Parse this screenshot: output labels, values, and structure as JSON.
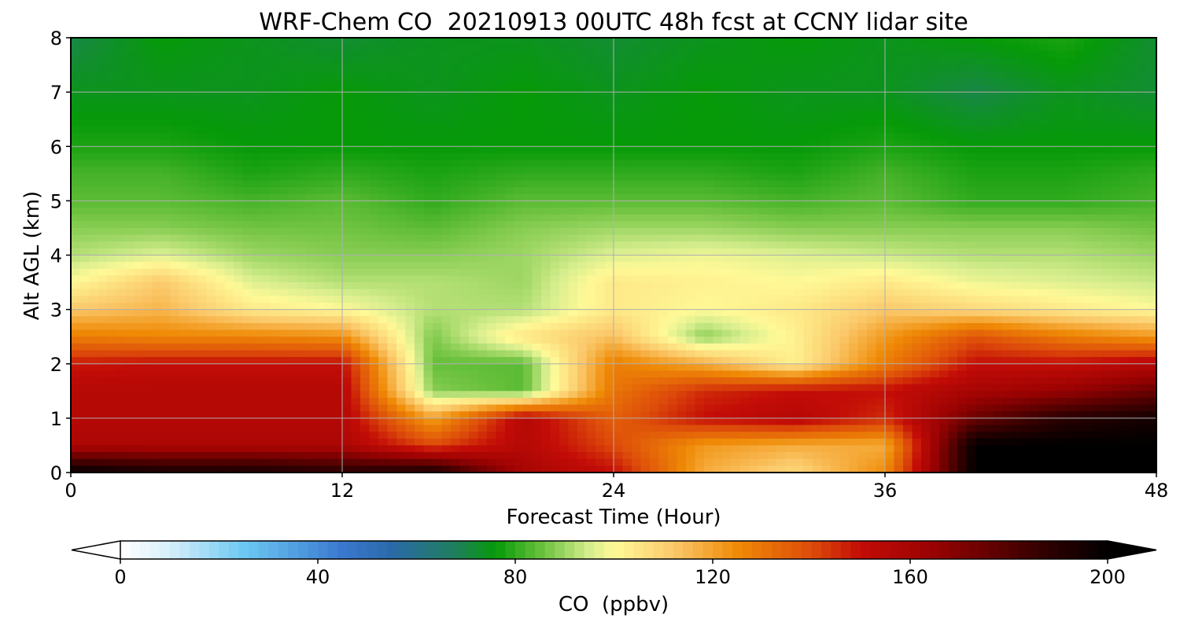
{
  "chart_data": {
    "type": "heatmap",
    "title": "WRF-Chem CO  20210913 00UTC 48h fcst at CCNY lidar site",
    "xlabel": "Forecast Time (Hour)",
    "ylabel": "Alt AGL (km)",
    "xlim": [
      0,
      48
    ],
    "ylim": [
      0,
      8
    ],
    "x_ticks": [
      "0",
      "12",
      "24",
      "36",
      "48"
    ],
    "y_ticks": [
      "0",
      "1",
      "2",
      "3",
      "4",
      "5",
      "6",
      "7",
      "8"
    ],
    "grid": true,
    "x": [
      0,
      4,
      8,
      12,
      16,
      20,
      24,
      28,
      32,
      36,
      40,
      44,
      48
    ],
    "y": [
      0,
      0.5,
      1,
      1.5,
      2,
      2.5,
      3,
      3.5,
      4,
      4.5,
      5,
      5.5,
      6,
      7,
      8
    ],
    "z": [
      [
        200,
        195,
        195,
        190,
        195,
        160,
        150,
        118,
        108,
        125,
        200,
        200,
        200
      ],
      [
        158,
        158,
        158,
        158,
        140,
        155,
        140,
        122,
        118,
        118,
        200,
        200,
        200
      ],
      [
        155,
        155,
        155,
        155,
        120,
        155,
        135,
        150,
        155,
        145,
        175,
        190,
        195
      ],
      [
        155,
        155,
        155,
        155,
        88,
        84,
        130,
        145,
        150,
        150,
        160,
        165,
        175
      ],
      [
        148,
        150,
        150,
        150,
        85,
        84,
        128,
        118,
        102,
        128,
        150,
        150,
        155
      ],
      [
        128,
        126,
        126,
        124,
        87,
        105,
        114,
        88,
        102,
        122,
        138,
        128,
        122
      ],
      [
        112,
        116,
        104,
        100,
        92,
        92,
        104,
        100,
        104,
        112,
        108,
        104,
        100
      ],
      [
        100,
        112,
        96,
        92,
        92,
        90,
        104,
        102,
        100,
        104,
        98,
        96,
        94
      ],
      [
        92,
        96,
        90,
        88,
        88,
        90,
        96,
        98,
        96,
        94,
        92,
        92,
        90
      ],
      [
        88,
        88,
        86,
        86,
        84,
        88,
        90,
        90,
        88,
        88,
        88,
        88,
        86
      ],
      [
        84,
        84,
        82,
        84,
        80,
        84,
        84,
        84,
        82,
        84,
        80,
        80,
        82
      ],
      [
        82,
        82,
        78,
        80,
        78,
        80,
        80,
        80,
        78,
        82,
        78,
        78,
        80
      ],
      [
        78,
        78,
        76,
        76,
        76,
        76,
        76,
        76,
        76,
        78,
        76,
        76,
        76
      ],
      [
        74,
        74,
        74,
        76,
        74,
        76,
        74,
        76,
        74,
        74,
        70,
        74,
        72
      ],
      [
        70,
        76,
        74,
        72,
        74,
        74,
        72,
        74,
        76,
        74,
        76,
        78,
        72
      ]
    ],
    "colorbar": {
      "label": "CO  (ppbv)",
      "min": 0,
      "max": 200,
      "ticks": [
        "0",
        "40",
        "80",
        "120",
        "160",
        "200"
      ],
      "extend": "both",
      "stops": [
        {
          "value": 0,
          "color": "#ffffff"
        },
        {
          "value": 10,
          "color": "#d6effb"
        },
        {
          "value": 25,
          "color": "#6cc8f2"
        },
        {
          "value": 45,
          "color": "#3a78cf"
        },
        {
          "value": 55,
          "color": "#2b6aa8"
        },
        {
          "value": 68,
          "color": "#1f7f5c"
        },
        {
          "value": 76,
          "color": "#069a08"
        },
        {
          "value": 85,
          "color": "#66bf3a"
        },
        {
          "value": 95,
          "color": "#d5ed8d"
        },
        {
          "value": 100,
          "color": "#fff997"
        },
        {
          "value": 112,
          "color": "#fbc96b"
        },
        {
          "value": 125,
          "color": "#ef8a06"
        },
        {
          "value": 140,
          "color": "#dd4b0a"
        },
        {
          "value": 150,
          "color": "#c30c07"
        },
        {
          "value": 165,
          "color": "#980202"
        },
        {
          "value": 185,
          "color": "#3b0000"
        },
        {
          "value": 200,
          "color": "#000000"
        }
      ]
    }
  }
}
